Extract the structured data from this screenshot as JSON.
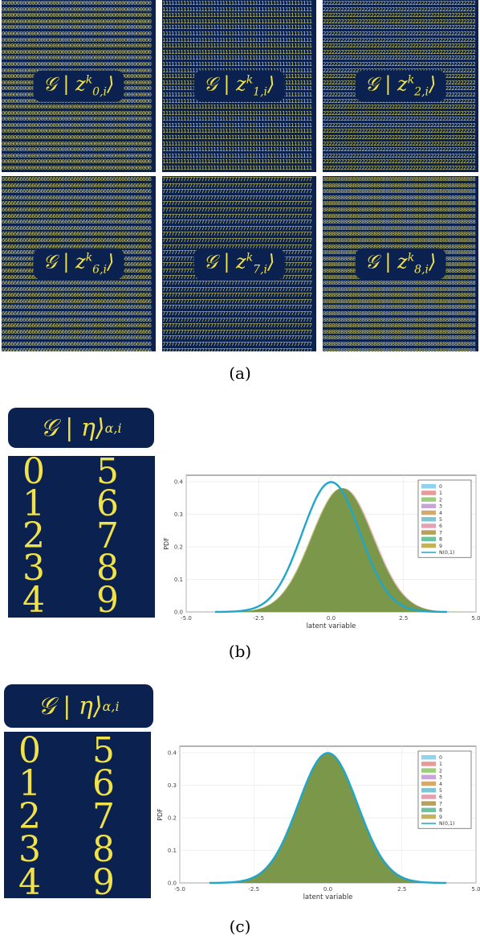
{
  "panel_a": {
    "caption": "(a)",
    "tiles": [
      {
        "label": "𝒢 | z",
        "sub": "0,i",
        "sup": "k",
        "digit": "0"
      },
      {
        "label": "𝒢 | z",
        "sub": "1,i",
        "sup": "k",
        "digit": "1"
      },
      {
        "label": "𝒢 | z",
        "sub": "2,i",
        "sup": "k",
        "digit": "2"
      },
      {
        "label": "𝒢 | z",
        "sub": "6,i",
        "sup": "k",
        "digit": "6"
      },
      {
        "label": "𝒢 | z",
        "sub": "7,i",
        "sup": "k",
        "digit": "7"
      },
      {
        "label": "𝒢 | z",
        "sub": "8,i",
        "sup": "k",
        "digit": "8"
      }
    ]
  },
  "panel_b": {
    "caption": "(b)",
    "eta_label": "𝒢 | η⟩",
    "eta_sub": "α,i",
    "digits": [
      "0",
      "5",
      "1",
      "6",
      "2",
      "7",
      "3",
      "8",
      "4",
      "9"
    ]
  },
  "panel_c": {
    "caption": "(c)",
    "eta_label": "𝒢 | η⟩",
    "eta_sub": "α,i",
    "digits": [
      "0",
      "5",
      "1",
      "6",
      "2",
      "7",
      "3",
      "8",
      "4",
      "9"
    ]
  },
  "chart_data": [
    {
      "type": "area",
      "xlabel": "latent variable",
      "ylabel": "PDF",
      "xlim": [
        -5.0,
        5.0
      ],
      "ylim": [
        0,
        0.42
      ],
      "xticks": [
        "-5.0",
        "-2.5",
        "0.0",
        "2.5",
        "5.0"
      ],
      "yticks": [
        "0.0",
        "0.1",
        "0.2",
        "0.3",
        "0.4"
      ],
      "legend": [
        "0",
        "1",
        "2",
        "3",
        "4",
        "5",
        "6",
        "7",
        "8",
        "9",
        "N(0,1)"
      ],
      "legend_position": "top-right",
      "series_mean": [
        0.4,
        0.45,
        0.35,
        0.4,
        0.35,
        0.4,
        0.38,
        0.42,
        0.38,
        0.36
      ],
      "series_peak": 0.38,
      "reference": {
        "name": "N(0,1)",
        "mean": 0,
        "std": 1,
        "peak": 0.399
      }
    },
    {
      "type": "area",
      "xlabel": "latent variable",
      "ylabel": "PDF",
      "xlim": [
        -5.0,
        5.0
      ],
      "ylim": [
        0,
        0.42
      ],
      "xticks": [
        "-5.0",
        "-2.5",
        "0.0",
        "2.5",
        "5.0"
      ],
      "yticks": [
        "0.0",
        "0.1",
        "0.2",
        "0.3",
        "0.4"
      ],
      "legend": [
        "0",
        "1",
        "2",
        "3",
        "4",
        "5",
        "6",
        "7",
        "8",
        "9",
        "N(0,1)"
      ],
      "legend_position": "top-right",
      "series_mean": [
        0,
        0,
        0,
        0,
        0,
        0,
        0,
        0,
        0,
        0
      ],
      "series_peak": 0.4,
      "reference": {
        "name": "N(0,1)",
        "mean": 0,
        "std": 1,
        "peak": 0.399
      }
    }
  ],
  "colors": {
    "navy": "#0b2250",
    "digit_yellow": "#f2e24a",
    "curve": "#1fa6c9",
    "hist_green": "#6b8e3a",
    "legend": [
      "#8fd3ef",
      "#e89a9a",
      "#9ccf7b",
      "#c9a3d9",
      "#d4a96a",
      "#7ec6d6",
      "#e6a0b4",
      "#b8a05a",
      "#6cc3a0",
      "#c4b35a"
    ]
  }
}
